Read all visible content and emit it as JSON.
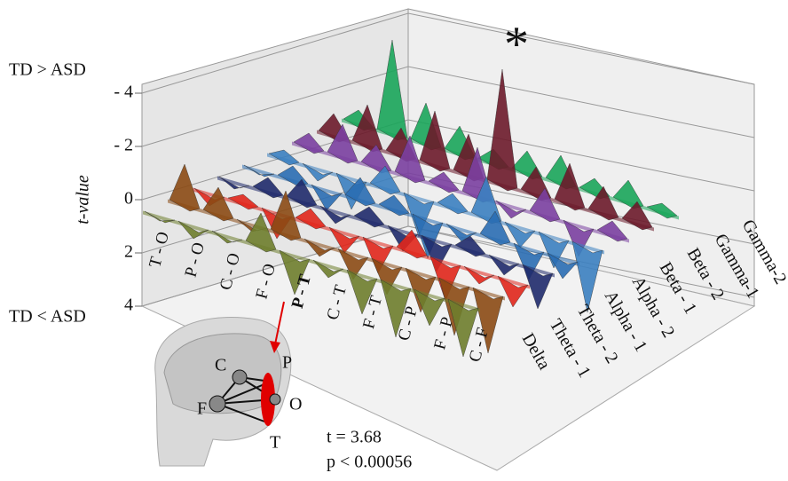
{
  "chart_data": {
    "type": "spike3d",
    "y_label": "t-value",
    "top_note": "TD > ASD",
    "bottom_note": "TD < ASD",
    "star": "*",
    "categories": [
      "T - O",
      "P - O",
      "C - O",
      "F - O",
      "P - T",
      "C - T",
      "F - T",
      "C - P",
      "F - P",
      "C - F"
    ],
    "highlighted_category": "P - T",
    "highlight_color": "#e00000",
    "series": [
      {
        "name": "Delta",
        "color": "#6e7d2c",
        "values": [
          0.2,
          0.5,
          0.3,
          -1.2,
          1.5,
          0.5,
          1.5,
          2,
          1.2,
          2
        ]
      },
      {
        "name": "Theta - 1",
        "color": "#8b4a14",
        "values": [
          -1.5,
          -1.0,
          0.3,
          -1.6,
          0.5,
          1,
          1.2,
          1.5,
          2,
          2.3
        ]
      },
      {
        "name": "Theta - 2",
        "color": "#e0261b",
        "values": [
          0.5,
          -0.3,
          1.0,
          -0.5,
          0.8,
          1.2,
          -0.8,
          1.5,
          0.5,
          1
        ]
      },
      {
        "name": "Alpha - 1",
        "color": "#1f2a6b",
        "values": [
          0.3,
          -0.5,
          -0.8,
          0.5,
          -0.5,
          0.8,
          1.2,
          -0.5,
          0.6,
          1.5
        ]
      },
      {
        "name": "Alpha - 2",
        "color": "#2a6db3",
        "values": [
          0.2,
          -0.5,
          0.8,
          -0.8,
          -0.5,
          1.5,
          0.5,
          -1,
          1.2,
          0.8
        ]
      },
      {
        "name": "Beta - 1",
        "color": "#3b7fc0",
        "values": [
          -0.3,
          0.5,
          1.2,
          -0.8,
          1.5,
          -0.5,
          -1.5,
          0.8,
          1.2,
          2.5
        ]
      },
      {
        "name": "Beta - 2",
        "color": "#7a3fa0",
        "values": [
          -0.5,
          -1.2,
          -0.8,
          -1.5,
          -0.5,
          -1.8,
          0.5,
          -1,
          1.2,
          -0.5
        ]
      },
      {
        "name": "Gamma-1",
        "color": "#6b1a2a",
        "values": [
          -0.8,
          -1.5,
          -1,
          -2,
          -1.5,
          -4.3,
          -1,
          -1.5,
          -1,
          -0.8
        ]
      },
      {
        "name": "Gamma-2",
        "color": "#1aa55a",
        "values": [
          -0.5,
          -3.5,
          -1.5,
          -1,
          -0.5,
          -0.8,
          -1,
          -0.5,
          -0.8,
          -0.3
        ]
      }
    ],
    "ylim": [
      4,
      -4
    ],
    "yticks": [
      {
        "value": -4,
        "label": "- 4"
      },
      {
        "value": -2,
        "label": "- 2"
      },
      0,
      2,
      4
    ],
    "grid": true
  },
  "inset": {
    "nodes": [
      "C",
      "P",
      "F",
      "O",
      "T"
    ],
    "stat": "t =  3.68",
    "p": "p < 0.00056"
  }
}
